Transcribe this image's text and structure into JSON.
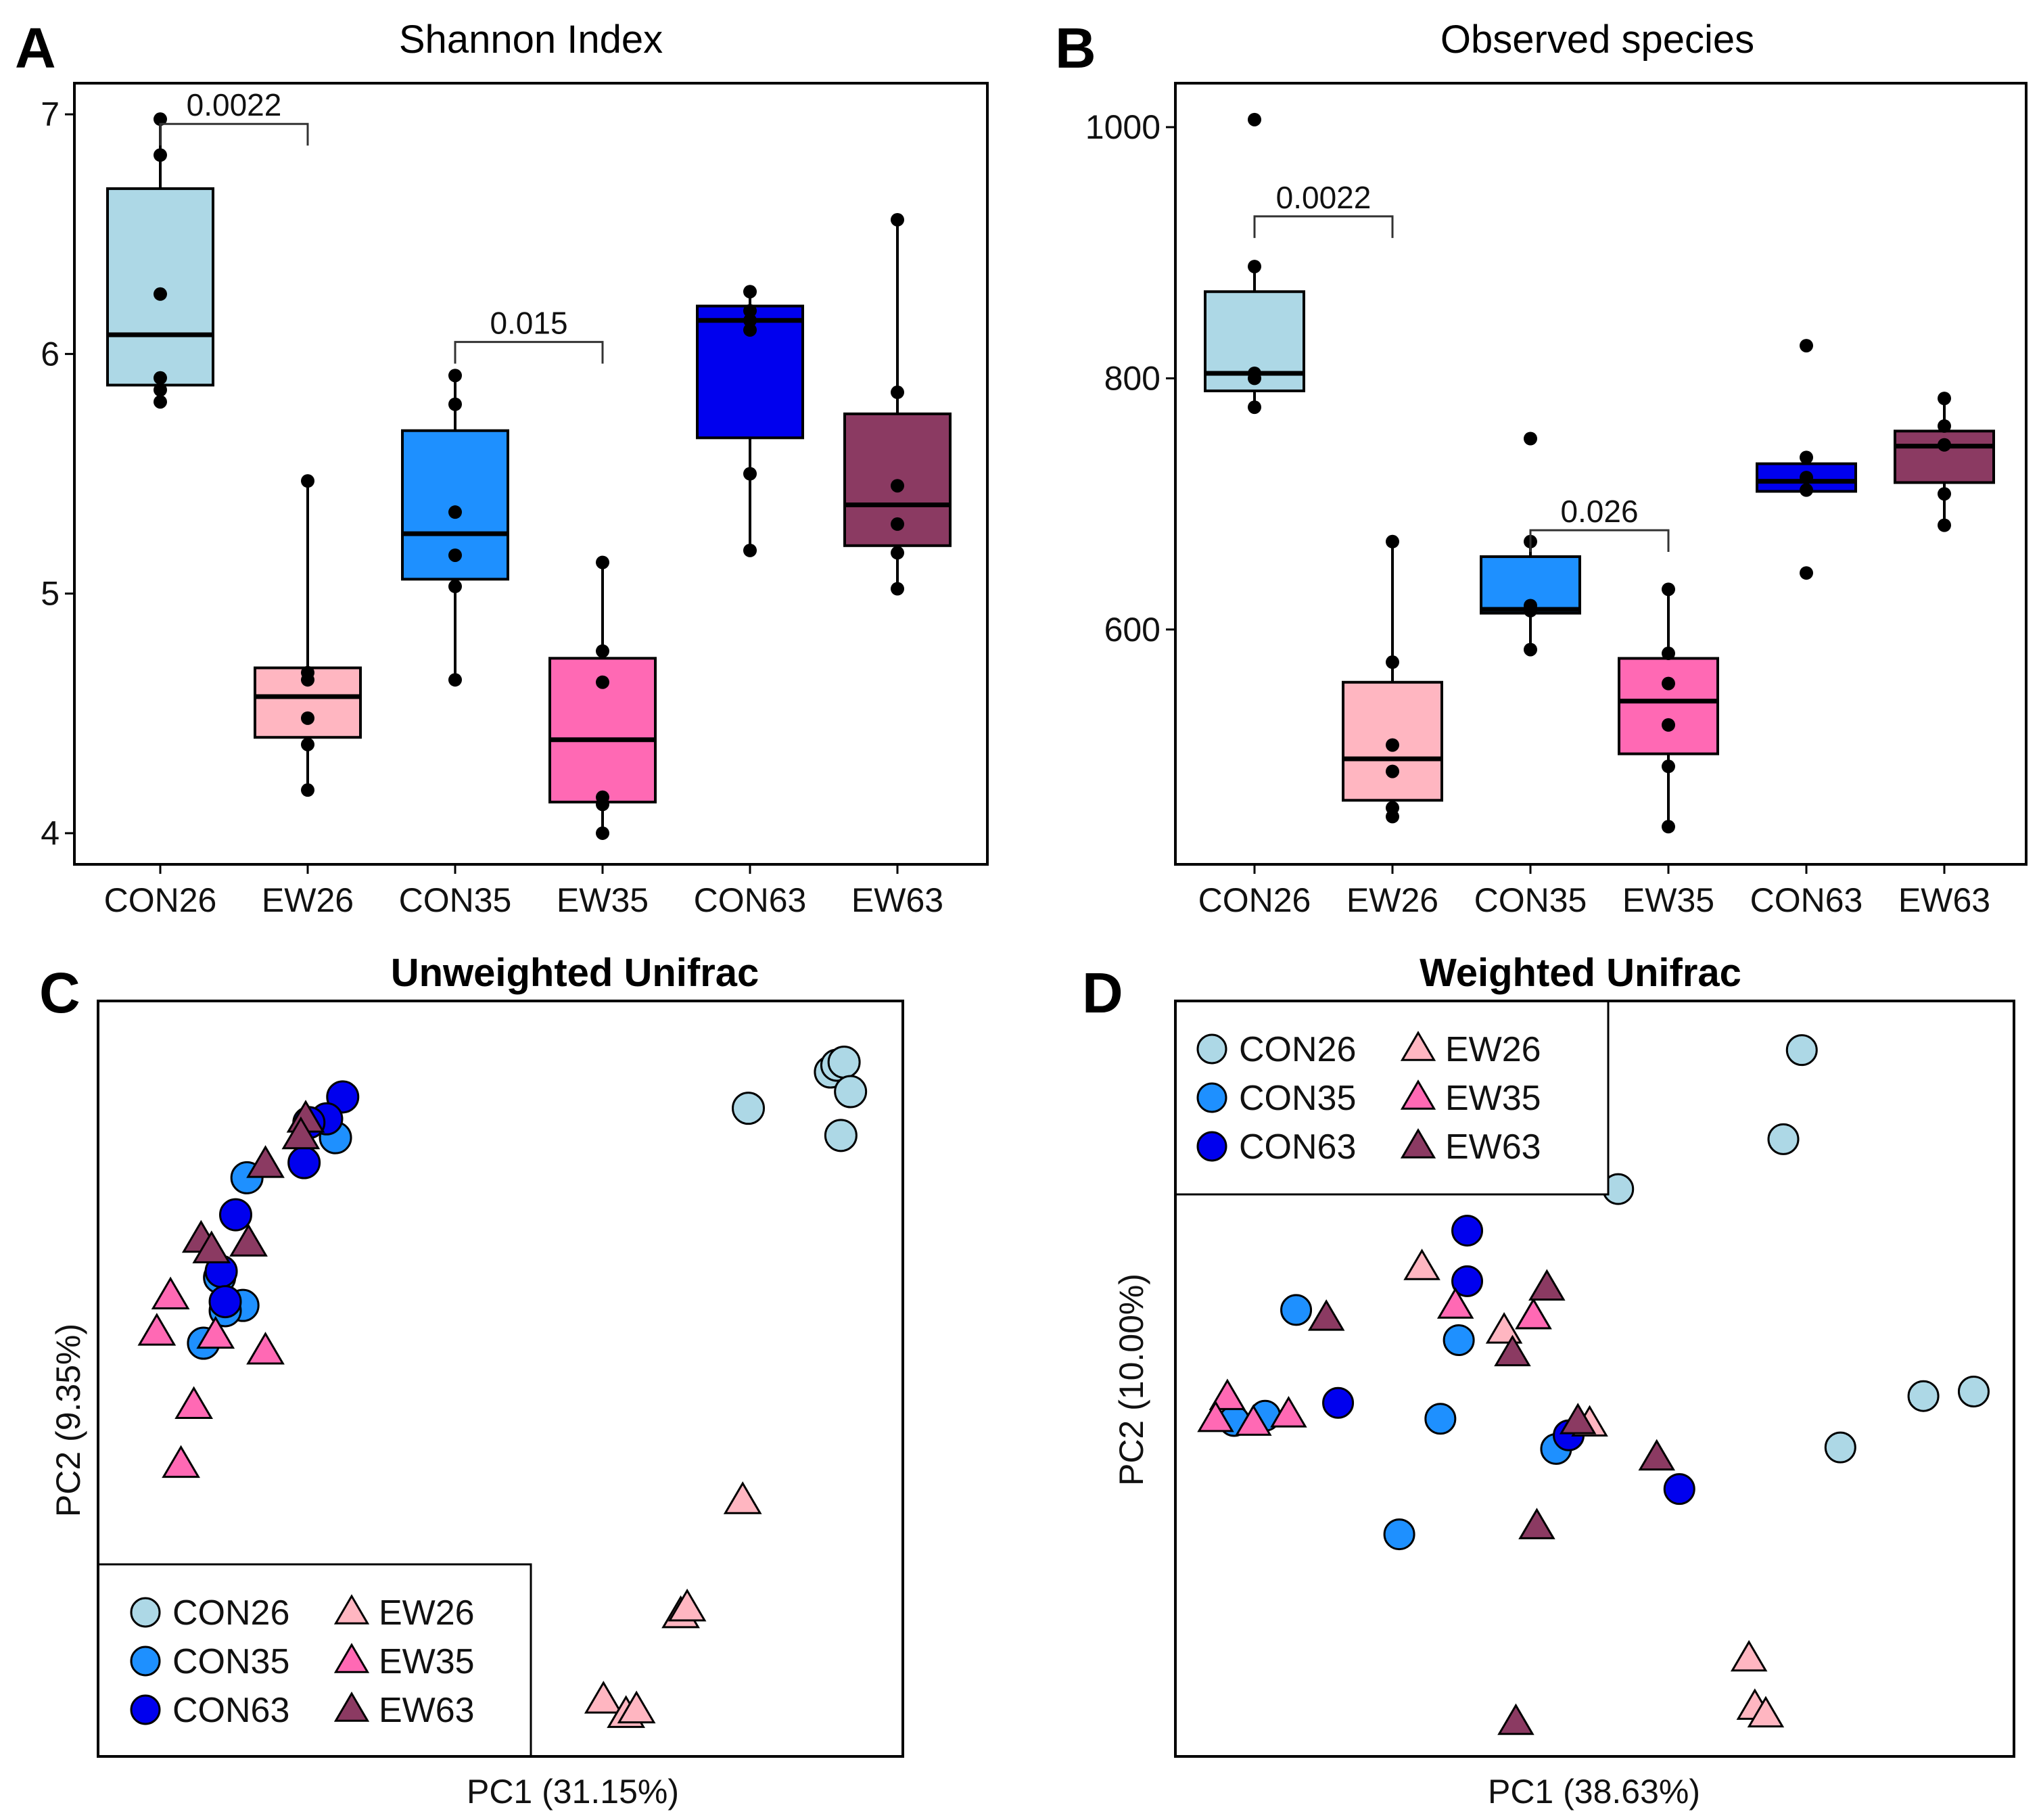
{
  "colors": {
    "CON26": "#add8e6",
    "EW26": "#ffb6c1",
    "CON35": "#1e90ff",
    "EW35": "#ff69b4",
    "CON63": "#0000ee",
    "EW63": "#8b3a62"
  },
  "chart_data": [
    {
      "panel": "A",
      "type": "box",
      "title": "Shannon Index",
      "xlabel": "",
      "ylabel": "",
      "categories": [
        "CON26",
        "EW26",
        "CON35",
        "EW35",
        "CON63",
        "EW63"
      ],
      "ylim": [
        3.87,
        7.13
      ],
      "yticks": [
        4,
        5,
        6,
        7
      ],
      "boxes": [
        {
          "group": "CON26",
          "q1": 5.87,
          "median": 6.08,
          "q3": 6.69,
          "min": 5.8,
          "max": 6.98,
          "points": [
            6.98,
            6.83,
            6.25,
            5.9,
            5.85,
            5.8
          ]
        },
        {
          "group": "EW26",
          "q1": 4.4,
          "median": 4.57,
          "q3": 4.69,
          "min": 4.18,
          "max": 5.47,
          "points": [
            5.47,
            4.67,
            4.64,
            4.48,
            4.37,
            4.18
          ]
        },
        {
          "group": "CON35",
          "q1": 5.06,
          "median": 5.25,
          "q3": 5.68,
          "min": 4.64,
          "max": 5.91,
          "points": [
            5.91,
            5.79,
            5.34,
            5.16,
            5.03,
            4.64
          ]
        },
        {
          "group": "EW35",
          "q1": 4.13,
          "median": 4.39,
          "q3": 4.73,
          "min": 4.0,
          "max": 5.13,
          "points": [
            5.13,
            4.76,
            4.63,
            4.15,
            4.12,
            4.0
          ]
        },
        {
          "group": "CON63",
          "q1": 5.65,
          "median": 6.14,
          "q3": 6.2,
          "min": 5.18,
          "max": 6.26,
          "points": [
            6.26,
            6.18,
            6.14,
            6.1,
            5.5,
            5.18
          ]
        },
        {
          "group": "EW63",
          "q1": 5.2,
          "median": 5.37,
          "q3": 5.75,
          "min": 5.02,
          "max": 6.56,
          "points": [
            6.56,
            5.84,
            5.45,
            5.29,
            5.17,
            5.02
          ]
        }
      ],
      "annotations": [
        {
          "label": "0.0022",
          "from": "CON26",
          "to": "EW26",
          "y": 6.96
        },
        {
          "label": "0.015",
          "from": "CON35",
          "to": "EW35",
          "y": 6.05
        }
      ]
    },
    {
      "panel": "B",
      "type": "box",
      "title": "Observed species",
      "xlabel": "",
      "ylabel": "",
      "categories": [
        "CON26",
        "EW26",
        "CON35",
        "EW35",
        "CON63",
        "EW63"
      ],
      "ylim": [
        413,
        1035
      ],
      "yticks": [
        600,
        800,
        1000
      ],
      "boxes": [
        {
          "group": "CON26",
          "q1": 790,
          "median": 804,
          "q3": 869,
          "min": 776,
          "max": 889,
          "points": [
            1006,
            889,
            804,
            800,
            777
          ]
        },
        {
          "group": "EW26",
          "q1": 464,
          "median": 497,
          "q3": 558,
          "min": 451,
          "max": 670,
          "points": [
            670,
            574,
            508,
            487,
            458,
            451
          ]
        },
        {
          "group": "CON35",
          "q1": 613,
          "median": 616,
          "q3": 658,
          "min": 584,
          "max": 670,
          "points": [
            752,
            670,
            619,
            615,
            584
          ]
        },
        {
          "group": "EW35",
          "q1": 501,
          "median": 543,
          "q3": 577,
          "min": 443,
          "max": 632,
          "points": [
            632,
            581,
            557,
            524,
            491,
            443
          ]
        },
        {
          "group": "CON63",
          "q1": 710,
          "median": 718,
          "q3": 732,
          "min": 710,
          "max": 732,
          "points": [
            826,
            737,
            721,
            711,
            645
          ]
        },
        {
          "group": "EW63",
          "q1": 717,
          "median": 746,
          "q3": 758,
          "min": 683,
          "max": 784,
          "points": [
            784,
            762,
            747,
            708,
            683
          ]
        }
      ],
      "annotations": [
        {
          "label": "0.0022",
          "from": "CON26",
          "to": "EW26",
          "y": 929
        },
        {
          "label": "0.026",
          "from": "CON35",
          "to": "EW35",
          "y": 679
        }
      ]
    },
    {
      "panel": "C",
      "type": "scatter",
      "title": "Unweighted Unifrac",
      "xlabel": "PC1 (31.15%)",
      "ylabel": "PC2 (9.35%)",
      "xlim": [
        0,
        100
      ],
      "ylim": [
        0,
        100
      ],
      "legend_position": "bottom-left",
      "series": [
        {
          "name": "CON26",
          "marker": "circle",
          "x": [
            80.8,
            91.0,
            91.8,
            92.7,
            93.5,
            92.3
          ],
          "y": [
            85.8,
            90.6,
            91.5,
            91.9,
            88.0,
            82.2
          ]
        },
        {
          "name": "CON35",
          "marker": "circle",
          "x": [
            18.5,
            29.5,
            15.1,
            18.0,
            15.8,
            13.1
          ],
          "y": [
            76.6,
            81.9,
            63.4,
            59.7,
            59.0,
            54.7
          ]
        },
        {
          "name": "CON63",
          "marker": "circle",
          "x": [
            30.4,
            28.4,
            26.2,
            25.6,
            17.1,
            15.3,
            15.8
          ],
          "y": [
            87.3,
            84.4,
            83.9,
            78.6,
            71.7,
            64.2,
            60.2
          ]
        },
        {
          "name": "EW26",
          "marker": "triangle",
          "x": [
            80.1,
            72.4,
            73.2,
            62.8,
            65.6,
            66.9
          ],
          "y": [
            33.8,
            18.7,
            19.6,
            7.4,
            5.5,
            6.1
          ]
        },
        {
          "name": "EW35",
          "marker": "triangle",
          "x": [
            9.0,
            7.3,
            14.6,
            20.8,
            11.9,
            10.3
          ],
          "y": [
            60.9,
            56.1,
            55.7,
            53.6,
            46.4,
            38.6
          ]
        },
        {
          "name": "EW63",
          "marker": "triangle",
          "x": [
            25.8,
            25.2,
            20.8,
            12.8,
            14.1,
            18.7
          ],
          "y": [
            84.3,
            82.1,
            78.3,
            68.4,
            67.0,
            67.9
          ]
        }
      ]
    },
    {
      "panel": "D",
      "type": "scatter",
      "title": "Weighted Unifrac",
      "xlabel": "PC1 (38.63%)",
      "ylabel": "PC2 (10.00%)",
      "xlim": [
        0,
        100
      ],
      "ylim": [
        0,
        100
      ],
      "legend_position": "top-left",
      "series": [
        {
          "name": "CON26",
          "marker": "circle",
          "x": [
            74.7,
            72.5,
            52.8,
            89.2,
            95.2,
            79.3
          ],
          "y": [
            93.5,
            81.7,
            75.1,
            47.7,
            48.3,
            40.9
          ]
        },
        {
          "name": "CON35",
          "marker": "circle",
          "x": [
            14.4,
            33.8,
            31.6,
            45.4,
            10.7,
            7.0,
            26.7
          ],
          "y": [
            59.1,
            55.1,
            44.7,
            40.7,
            45.1,
            44.4,
            29.4
          ]
        },
        {
          "name": "CON63",
          "marker": "circle",
          "x": [
            34.8,
            34.8,
            19.4,
            46.9,
            60.1
          ],
          "y": [
            69.6,
            62.9,
            46.8,
            42.5,
            35.4
          ]
        },
        {
          "name": "EW26",
          "marker": "triangle",
          "x": [
            29.4,
            42.7,
            39.2,
            49.4,
            68.4,
            69.1,
            70.4
          ],
          "y": [
            64.7,
            58.2,
            56.3,
            44.0,
            12.9,
            6.5,
            5.5
          ]
        },
        {
          "name": "EW35",
          "marker": "triangle",
          "x": [
            6.2,
            4.8,
            9.3,
            13.5,
            33.4,
            42.7
          ],
          "y": [
            47.5,
            44.6,
            44.1,
            45.2,
            59.6,
            58.2
          ]
        },
        {
          "name": "EW63",
          "marker": "triangle",
          "x": [
            18.0,
            40.2,
            44.3,
            48.0,
            57.4,
            43.1,
            40.6
          ],
          "y": [
            58.0,
            53.3,
            62.0,
            44.3,
            39.5,
            30.4,
            4.5
          ]
        }
      ]
    }
  ],
  "legend": {
    "entries": [
      {
        "group": "CON26",
        "label": "CON26",
        "marker": "circle"
      },
      {
        "group": "EW26",
        "label": "EW26",
        "marker": "triangle"
      },
      {
        "group": "CON35",
        "label": "CON35",
        "marker": "circle"
      },
      {
        "group": "EW35",
        "label": "EW35",
        "marker": "triangle"
      },
      {
        "group": "CON63",
        "label": "CON63",
        "marker": "circle"
      },
      {
        "group": "EW63",
        "label": "EW63",
        "marker": "triangle"
      }
    ]
  }
}
